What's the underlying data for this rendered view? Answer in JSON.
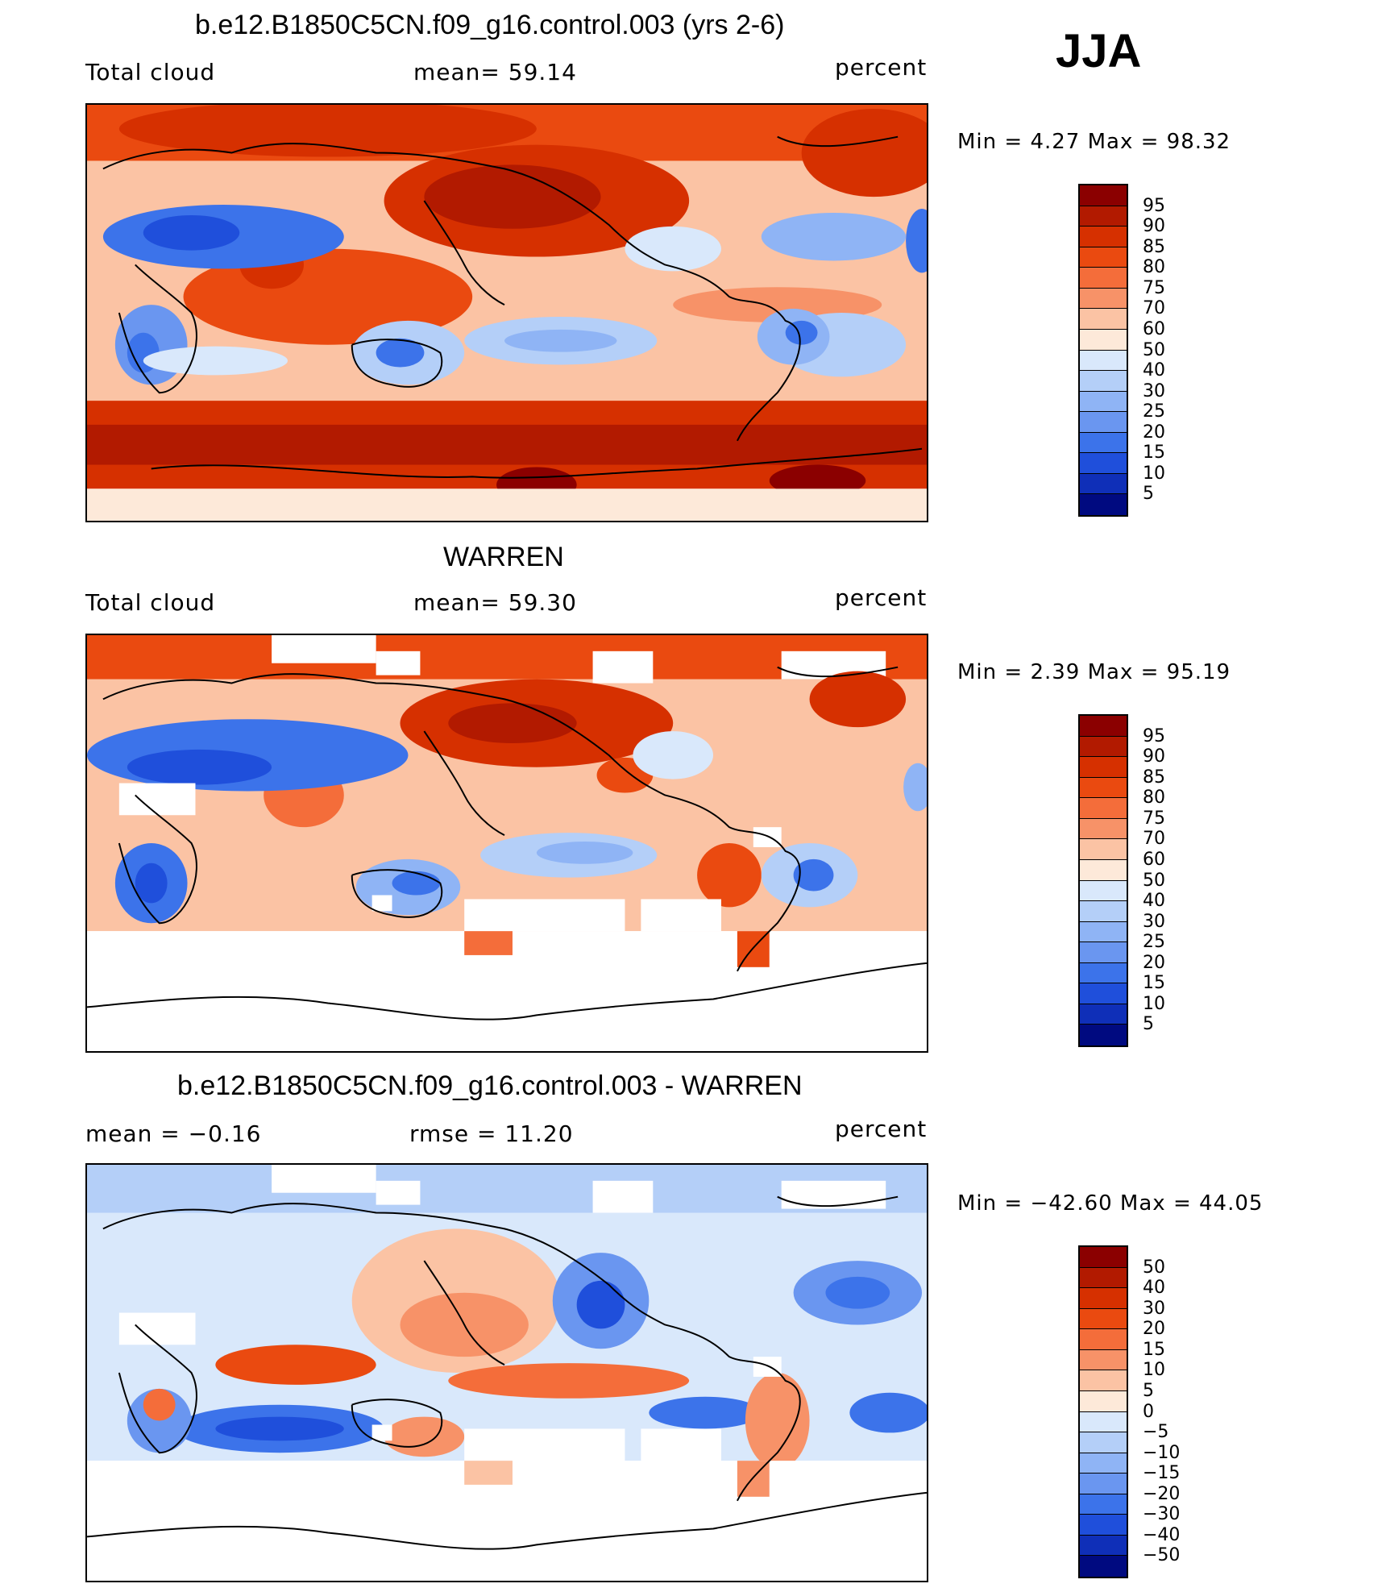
{
  "season": "JJA",
  "panels": [
    {
      "title": "b.e12.B1850C5CN.f09_g16.control.003 (yrs 2-6)",
      "left_label": "Total cloud",
      "center_label": "mean=  59.14",
      "right_label": "percent",
      "minmax": "Min =    4.27 Max =   98.32",
      "colorbar_labels": [
        "95",
        "90",
        "85",
        "80",
        "75",
        "70",
        "60",
        "50",
        "40",
        "30",
        "25",
        "20",
        "15",
        "10",
        "5"
      ],
      "colorbar_colors": [
        "#8b0000",
        "#b21a00",
        "#d63000",
        "#ea4a10",
        "#f46d3a",
        "#f79268",
        "#fbc3a4",
        "#fde9d9",
        "#d9e8fb",
        "#b4cff8",
        "#8fb4f5",
        "#6a96f0",
        "#3c73ea",
        "#1f4fdb",
        "#0f2fb8",
        "#000a80"
      ]
    },
    {
      "title": "WARREN",
      "left_label": "Total cloud",
      "center_label": "mean=  59.30",
      "right_label": "percent",
      "minmax": "Min =    2.39 Max =   95.19",
      "colorbar_labels": [
        "95",
        "90",
        "85",
        "80",
        "75",
        "70",
        "60",
        "50",
        "40",
        "30",
        "25",
        "20",
        "15",
        "10",
        "5"
      ],
      "colorbar_colors": [
        "#8b0000",
        "#b21a00",
        "#d63000",
        "#ea4a10",
        "#f46d3a",
        "#f79268",
        "#fbc3a4",
        "#fde9d9",
        "#d9e8fb",
        "#b4cff8",
        "#8fb4f5",
        "#6a96f0",
        "#3c73ea",
        "#1f4fdb",
        "#0f2fb8",
        "#000a80"
      ]
    },
    {
      "title": "b.e12.B1850C5CN.f09_g16.control.003 - WARREN",
      "left_label": "mean =   −0.16",
      "center_label": "rmse =   11.20",
      "right_label": "percent",
      "minmax": "Min = −42.60 Max =   44.05",
      "colorbar_labels": [
        "50",
        "40",
        "30",
        "20",
        "15",
        "10",
        "5",
        "0",
        "−5",
        "−10",
        "−15",
        "−20",
        "−30",
        "−40",
        "−50"
      ],
      "colorbar_colors": [
        "#8b0000",
        "#b21a00",
        "#d63000",
        "#ea4a10",
        "#f46d3a",
        "#f79268",
        "#fbc3a4",
        "#fde9d9",
        "#d9e8fb",
        "#b4cff8",
        "#8fb4f5",
        "#6a96f0",
        "#3c73ea",
        "#1f4fdb",
        "#0f2fb8",
        "#000a80"
      ]
    }
  ]
}
